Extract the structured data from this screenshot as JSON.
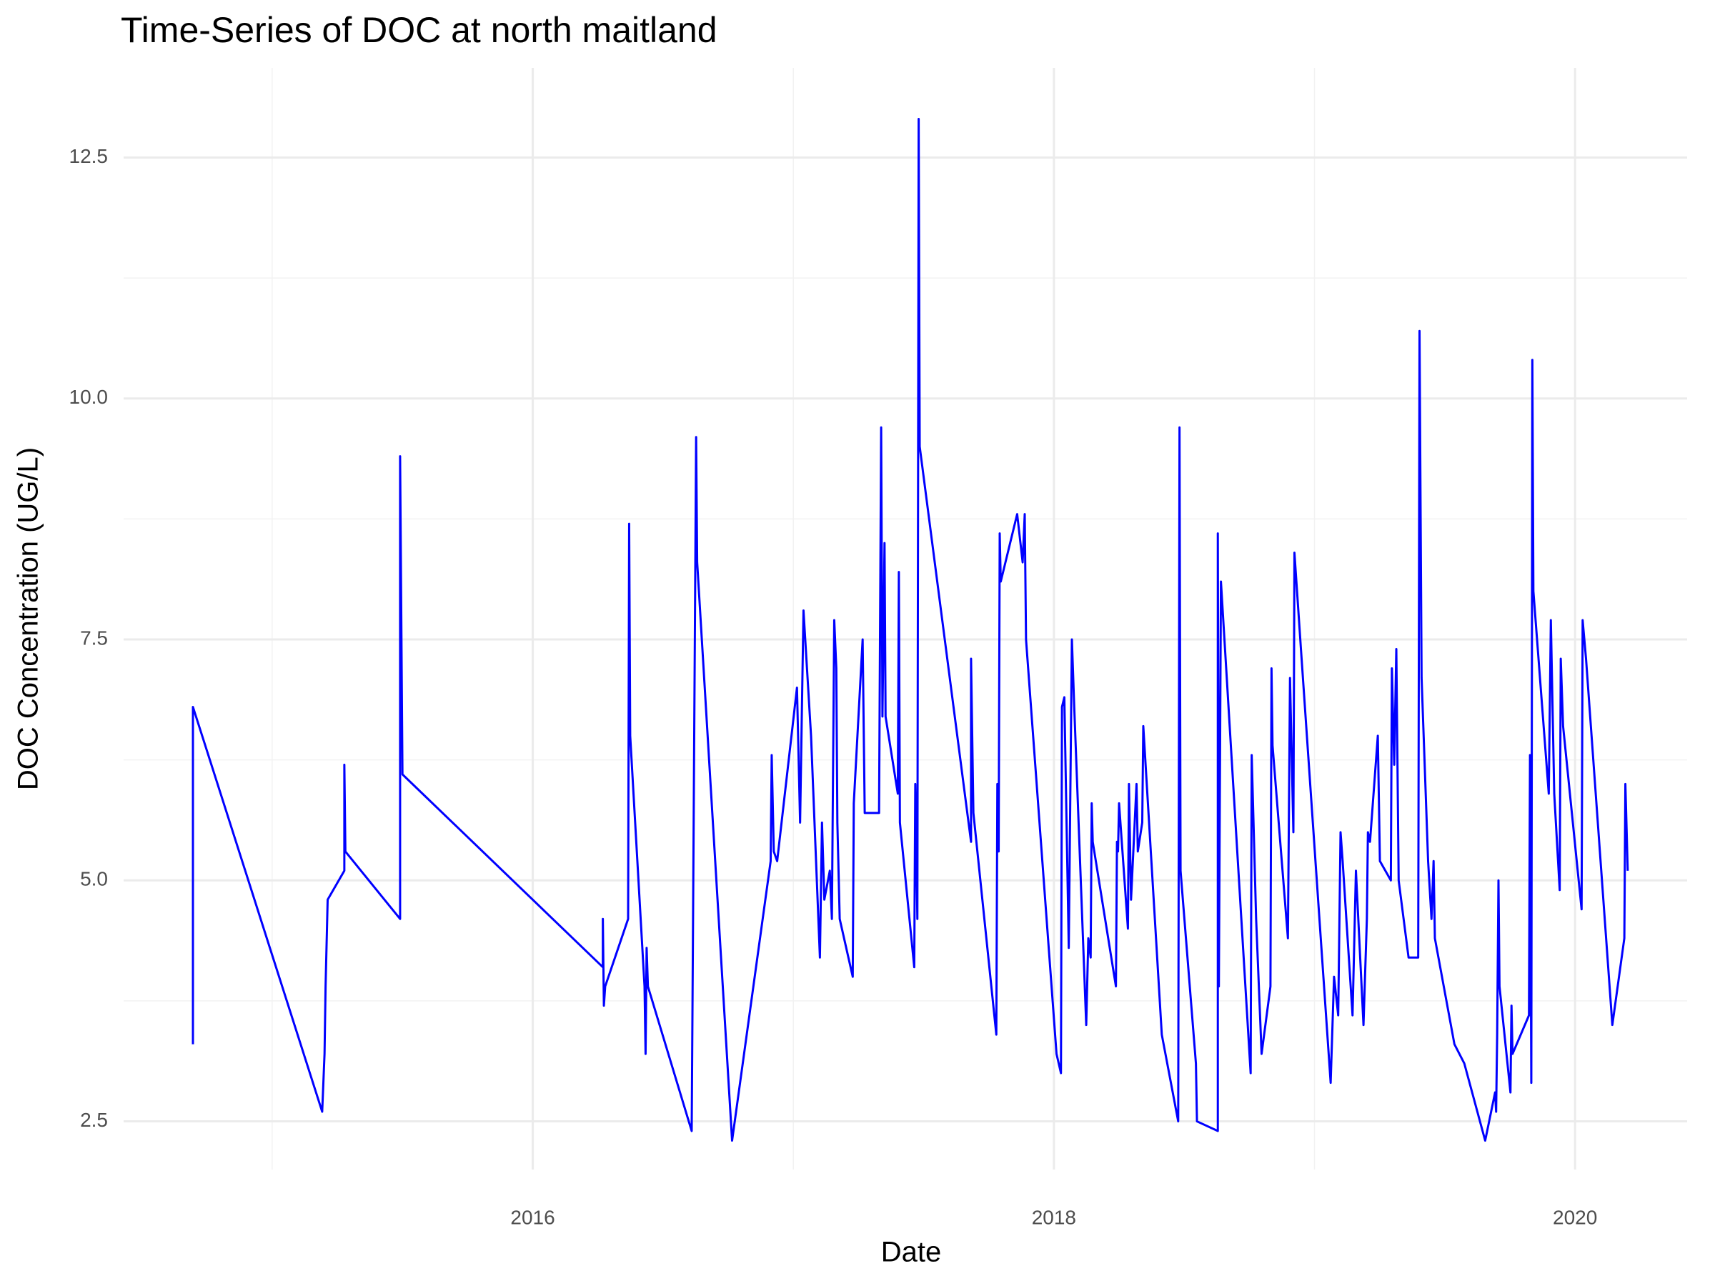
{
  "chart_data": {
    "type": "line",
    "title": "Time-Series of DOC at north maitland",
    "xlabel": "Date",
    "ylabel": "DOC Concentration (UG/L)",
    "x": [
      2014.696,
      2014.696,
      2015.192,
      2015.201,
      2015.205,
      2015.213,
      2015.277,
      2015.277,
      2015.281,
      2015.491,
      2015.491,
      2015.5,
      2016.269,
      2016.269,
      2016.273,
      2016.278,
      2016.366,
      2016.37,
      2016.374,
      2016.429,
      2016.433,
      2016.437,
      2016.442,
      2016.61,
      2016.627,
      2016.631,
      2016.765,
      2016.913,
      2016.917,
      2016.925,
      2016.938,
      2017.014,
      2017.026,
      2017.039,
      2017.068,
      2017.102,
      2017.11,
      2017.119,
      2017.14,
      2017.148,
      2017.157,
      2017.165,
      2017.169,
      2017.178,
      2017.228,
      2017.232,
      2017.266,
      2017.274,
      2017.329,
      2017.337,
      2017.342,
      2017.35,
      2017.354,
      2017.401,
      2017.405,
      2017.409,
      2017.464,
      2017.468,
      2017.476,
      2017.481,
      2017.485,
      2017.682,
      2017.682,
      2017.691,
      2017.779,
      2017.783,
      2017.788,
      2017.792,
      2017.796,
      2017.859,
      2017.88,
      2017.888,
      2017.893,
      2018.01,
      2018.027,
      2018.031,
      2018.04,
      2018.057,
      2018.069,
      2018.078,
      2018.124,
      2018.132,
      2018.141,
      2018.145,
      2018.149,
      2018.238,
      2018.242,
      2018.246,
      2018.25,
      2018.284,
      2018.288,
      2018.296,
      2018.317,
      2018.322,
      2018.339,
      2018.343,
      2018.414,
      2018.477,
      2018.482,
      2018.486,
      2018.545,
      2018.549,
      2018.629,
      2018.629,
      2018.633,
      2018.641,
      2018.755,
      2018.759,
      2018.776,
      2018.797,
      2018.831,
      2018.835,
      2018.839,
      2018.898,
      2018.906,
      2018.919,
      2018.923,
      2018.948,
      2019.062,
      2019.075,
      2019.091,
      2019.1,
      2019.108,
      2019.146,
      2019.159,
      2019.188,
      2019.201,
      2019.205,
      2019.213,
      2019.243,
      2019.251,
      2019.293,
      2019.297,
      2019.306,
      2019.314,
      2019.323,
      2019.361,
      2019.398,
      2019.403,
      2019.411,
      2019.436,
      2019.449,
      2019.457,
      2019.462,
      2019.537,
      2019.575,
      2019.655,
      2019.693,
      2019.697,
      2019.701,
      2019.706,
      2019.71,
      2019.752,
      2019.756,
      2019.76,
      2019.823,
      2019.827,
      2019.832,
      2019.836,
      2019.84,
      2019.899,
      2019.907,
      2019.92,
      2019.941,
      2019.945,
      2019.954,
      2020.025,
      2020.029,
      2020.042,
      2020.143,
      2020.189,
      2020.193,
      2020.202
    ],
    "series": [
      {
        "name": "DOC",
        "color": "#0000ff",
        "values": [
          3.3,
          6.8,
          2.6,
          3.2,
          3.9,
          4.8,
          5.1,
          6.2,
          5.3,
          4.6,
          9.4,
          6.1,
          4.1,
          4.6,
          3.7,
          3.9,
          4.6,
          8.7,
          6.5,
          3.9,
          3.2,
          4.3,
          3.9,
          2.4,
          9.6,
          8.3,
          2.3,
          5.2,
          6.3,
          5.3,
          5.2,
          7.0,
          5.6,
          7.8,
          6.5,
          4.2,
          5.6,
          4.8,
          5.1,
          4.6,
          7.7,
          7.2,
          5.6,
          4.6,
          4.0,
          5.8,
          7.5,
          5.7,
          5.7,
          9.7,
          6.7,
          8.5,
          6.7,
          5.9,
          8.2,
          5.6,
          4.1,
          6.0,
          4.6,
          12.9,
          9.5,
          5.4,
          7.3,
          5.7,
          3.4,
          6.0,
          5.3,
          8.6,
          8.1,
          8.8,
          8.3,
          8.8,
          7.5,
          3.2,
          3.0,
          6.8,
          6.9,
          4.3,
          7.5,
          6.8,
          3.5,
          4.4,
          4.2,
          5.8,
          5.4,
          3.9,
          5.4,
          5.3,
          5.8,
          4.5,
          6.0,
          4.8,
          6.0,
          5.3,
          5.6,
          6.6,
          3.4,
          2.5,
          9.7,
          5.1,
          3.1,
          2.5,
          2.4,
          8.6,
          3.9,
          8.1,
          3.0,
          6.3,
          4.6,
          3.2,
          3.9,
          7.2,
          6.4,
          4.4,
          7.1,
          5.5,
          8.4,
          7.4,
          2.9,
          4.0,
          3.6,
          5.5,
          5.2,
          3.6,
          5.1,
          3.5,
          4.6,
          5.5,
          5.4,
          6.5,
          5.2,
          5.0,
          7.2,
          6.2,
          7.4,
          5.0,
          4.2,
          4.2,
          10.7,
          7.1,
          5.2,
          4.6,
          5.2,
          4.4,
          3.3,
          3.1,
          2.3,
          2.8,
          2.6,
          3.4,
          5.0,
          3.9,
          2.8,
          3.7,
          3.2,
          3.6,
          6.3,
          2.9,
          10.4,
          8.0,
          5.9,
          7.7,
          5.9,
          4.9,
          7.3,
          6.6,
          4.7,
          7.7,
          7.3,
          3.5,
          4.4,
          6.0,
          5.1
        ]
      }
    ],
    "xlim": [
      2014.43,
      2020.43
    ],
    "xticks": [
      2016,
      2018,
      2020
    ],
    "ylim": [
      2.0,
      13.43
    ],
    "yticks": [
      2.5,
      {
        "value": 5,
        "label": "5.0"
      },
      7.5,
      {
        "value": 10,
        "label": "10.0"
      },
      12.5
    ],
    "grid": true
  }
}
